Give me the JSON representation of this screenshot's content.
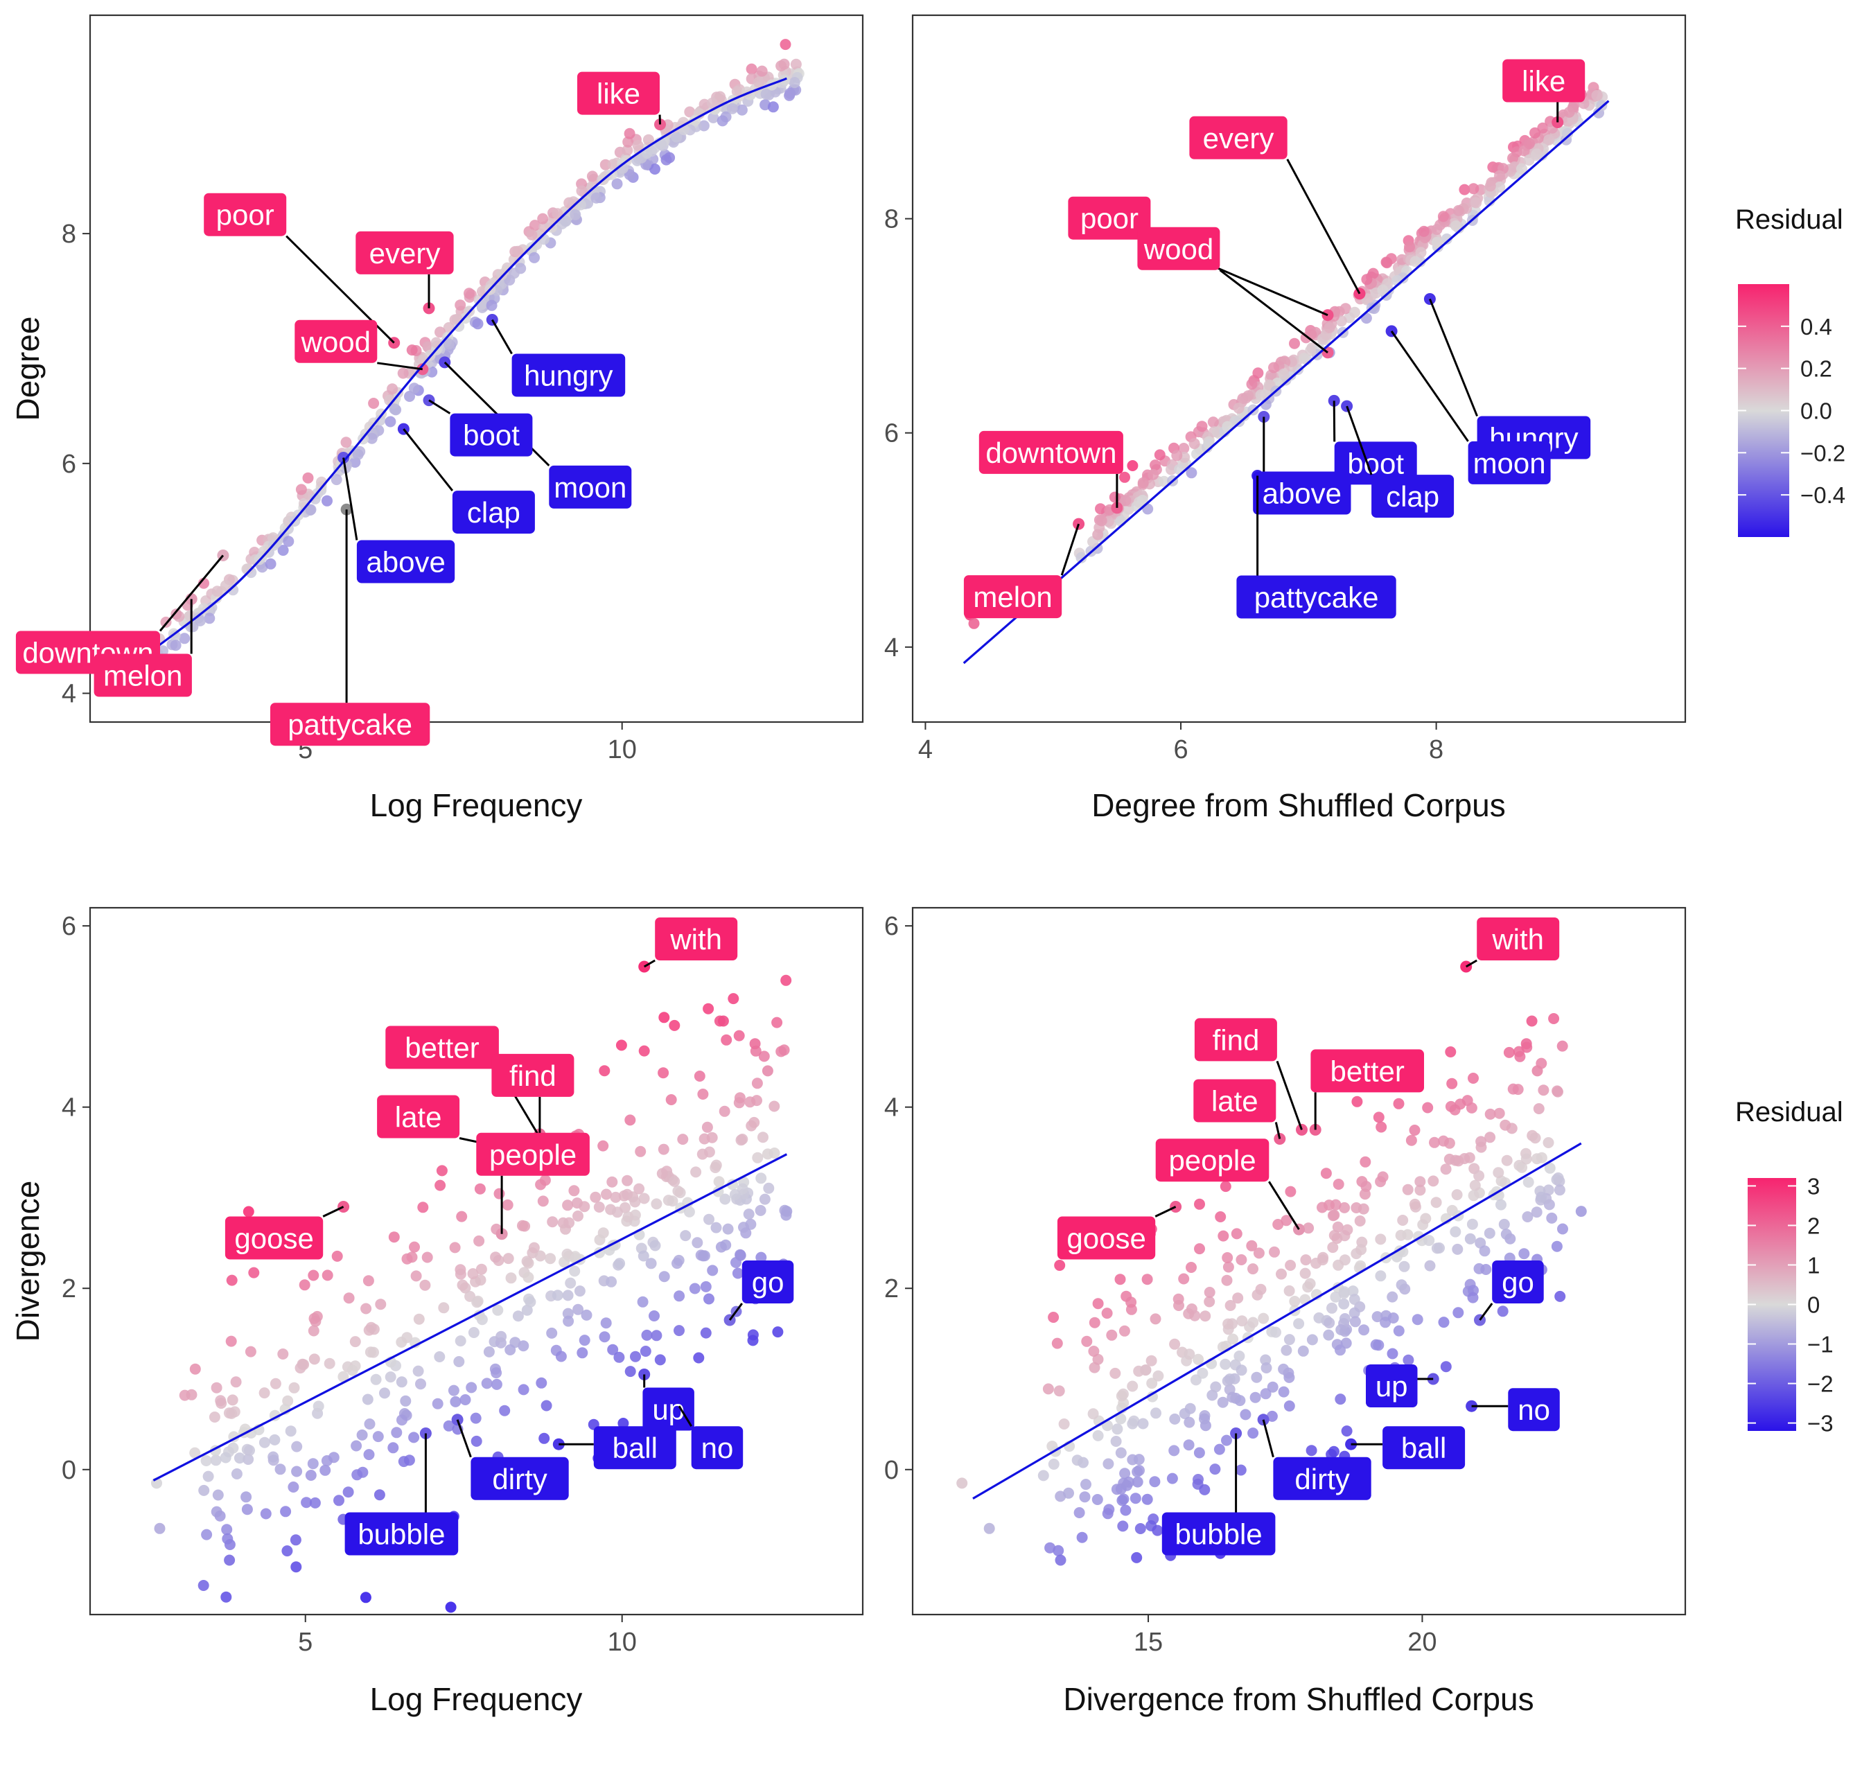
{
  "colors": {
    "fit_line": "#1010e0",
    "high": "#f7236f",
    "mid": "#d9d9d9",
    "low": "#2a12e8",
    "outlier_point": "#8a8a8a"
  },
  "legends": [
    {
      "title": "Residual",
      "ticks": [
        "0.4",
        "0.2",
        "0.0",
        "−0.2",
        "−0.4"
      ],
      "tick_values": [
        0.4,
        0.2,
        0.0,
        -0.2,
        -0.4
      ],
      "range": [
        -0.6,
        0.6
      ]
    },
    {
      "title": "Residual",
      "ticks": [
        "3",
        "2",
        "1",
        "0",
        "−1",
        "−2",
        "−3"
      ],
      "tick_values": [
        3,
        2,
        1,
        0,
        -1,
        -2,
        -3
      ],
      "range": [
        -3.2,
        3.2
      ]
    }
  ],
  "chart_data": [
    {
      "type": "scatter",
      "xlabel": "Log Frequency",
      "ylabel": "Degree",
      "xlim": [
        1.6,
        13.8
      ],
      "ylim": [
        3.75,
        9.9
      ],
      "xticks": [
        5,
        10
      ],
      "yticks": [
        4,
        6,
        8
      ],
      "x_tick_labels": [
        "5",
        "10"
      ],
      "y_tick_labels": [
        "4",
        "6",
        "8"
      ],
      "legend": 0,
      "fit_line": "curve",
      "fit_points": [
        [
          2.6,
          4.38
        ],
        [
          4.0,
          5.0
        ],
        [
          5.5,
          5.95
        ],
        [
          7.0,
          6.95
        ],
        [
          8.5,
          7.85
        ],
        [
          10.0,
          8.6
        ],
        [
          11.5,
          9.1
        ],
        [
          12.6,
          9.35
        ]
      ],
      "cloud": {
        "n": 420,
        "seed": 7,
        "x_range": [
          2.6,
          12.8
        ],
        "noise_sd": 0.08,
        "resid_scale": 0.3
      },
      "labeled_points": [
        {
          "label": "like",
          "x": 10.6,
          "y": 8.95,
          "residual": 0.4
        },
        {
          "label": "poor",
          "x": 6.4,
          "y": 7.05,
          "residual": 0.45
        },
        {
          "label": "every",
          "x": 6.95,
          "y": 7.35,
          "residual": 0.45
        },
        {
          "label": "wood",
          "x": 6.85,
          "y": 6.82,
          "residual": 0.4
        },
        {
          "label": "hungry",
          "x": 7.95,
          "y": 7.25,
          "residual": -0.45
        },
        {
          "label": "moon",
          "x": 7.2,
          "y": 6.88,
          "residual": -0.45
        },
        {
          "label": "boot",
          "x": 6.95,
          "y": 6.55,
          "residual": -0.4
        },
        {
          "label": "clap",
          "x": 6.55,
          "y": 6.3,
          "residual": -0.5
        },
        {
          "label": "above",
          "x": 5.6,
          "y": 6.05,
          "residual": -0.4
        },
        {
          "label": "pattycake",
          "x": 5.65,
          "y": 5.6,
          "residual": 0.0,
          "outlier": true
        },
        {
          "label": "downtown",
          "x": 3.7,
          "y": 5.2,
          "residual": 0.15
        },
        {
          "label": "melon",
          "x": 3.2,
          "y": 4.82,
          "residual": 0.2
        }
      ],
      "extra_points": [
        [
          2.65,
          4.3
        ],
        [
          2.65,
          4.22
        ]
      ]
    },
    {
      "type": "scatter",
      "xlabel": "Degree from Shuffled Corpus",
      "ylabel": "",
      "xlim": [
        3.9,
        9.95
      ],
      "ylim": [
        3.3,
        9.9
      ],
      "xticks": [
        4,
        6,
        8
      ],
      "yticks": [
        4,
        6,
        8
      ],
      "x_tick_labels": [
        "4",
        "6",
        "8"
      ],
      "y_tick_labels": [
        "4",
        "6",
        "8"
      ],
      "legend": 0,
      "fit_line": "line",
      "fit_points": [
        [
          4.3,
          3.85
        ],
        [
          9.35,
          9.1
        ]
      ],
      "cloud": {
        "n": 380,
        "seed": 11,
        "x_range": [
          5.2,
          9.3
        ],
        "noise_sd": 0.09,
        "resid_scale": 0.3,
        "offset": 0.15
      },
      "labeled_points": [
        {
          "label": "like",
          "x": 8.95,
          "y": 8.9,
          "residual": 0.45
        },
        {
          "label": "every",
          "x": 7.4,
          "y": 7.3,
          "residual": 0.5
        },
        {
          "label": "poor",
          "x": 7.15,
          "y": 7.1,
          "residual": 0.45
        },
        {
          "label": "wood",
          "x": 7.15,
          "y": 6.75,
          "residual": 0.4
        },
        {
          "label": "hungry",
          "x": 7.95,
          "y": 7.25,
          "residual": -0.5
        },
        {
          "label": "moon",
          "x": 7.65,
          "y": 6.95,
          "residual": -0.5
        },
        {
          "label": "boot",
          "x": 7.2,
          "y": 6.3,
          "residual": -0.45
        },
        {
          "label": "clap",
          "x": 7.3,
          "y": 6.25,
          "residual": -0.45
        },
        {
          "label": "above",
          "x": 6.65,
          "y": 6.15,
          "residual": -0.4
        },
        {
          "label": "pattycake",
          "x": 6.6,
          "y": 5.6,
          "residual": -0.55
        },
        {
          "label": "downtown",
          "x": 5.5,
          "y": 5.3,
          "residual": 0.4
        },
        {
          "label": "melon",
          "x": 5.2,
          "y": 5.15,
          "residual": 0.45
        }
      ],
      "extra_points": [
        [
          4.35,
          4.3
        ],
        [
          4.38,
          4.22
        ],
        [
          5.35,
          5.05
        ]
      ]
    },
    {
      "type": "scatter",
      "xlabel": "Log Frequency",
      "ylabel": "Divergence",
      "xlim": [
        1.6,
        13.8
      ],
      "ylim": [
        -1.6,
        6.2
      ],
      "xticks": [
        5,
        10
      ],
      "yticks": [
        0,
        2,
        4,
        6
      ],
      "x_tick_labels": [
        "5",
        "10"
      ],
      "y_tick_labels": [
        "0",
        "2",
        "4",
        "6"
      ],
      "legend": 1,
      "fit_line": "line",
      "fit_points": [
        [
          2.6,
          -0.12
        ],
        [
          12.6,
          3.48
        ]
      ],
      "cloud": {
        "n": 430,
        "seed": 23,
        "x_range": [
          3.0,
          12.6
        ],
        "noise_sd": 0.85,
        "resid_scale": 1.6
      },
      "labeled_points": [
        {
          "label": "with",
          "x": 10.35,
          "y": 5.55,
          "residual": 3.0
        },
        {
          "label": "better",
          "x": 8.8,
          "y": 3.55,
          "residual": 1.8
        },
        {
          "label": "find",
          "x": 8.7,
          "y": 3.7,
          "residual": 1.9
        },
        {
          "label": "late",
          "x": 8.15,
          "y": 3.55,
          "residual": 1.8
        },
        {
          "label": "people",
          "x": 8.1,
          "y": 2.6,
          "residual": 1.2
        },
        {
          "label": "goose",
          "x": 5.6,
          "y": 2.9,
          "residual": 2.2
        },
        {
          "label": "go",
          "x": 11.7,
          "y": 1.65,
          "residual": -1.8
        },
        {
          "label": "up",
          "x": 10.35,
          "y": 1.05,
          "residual": -2.2
        },
        {
          "label": "no",
          "x": 10.9,
          "y": 0.7,
          "residual": -2.6
        },
        {
          "label": "ball",
          "x": 9.0,
          "y": 0.28,
          "residual": -2.6
        },
        {
          "label": "dirty",
          "x": 7.4,
          "y": 0.55,
          "residual": -2.0
        },
        {
          "label": "bubble",
          "x": 6.9,
          "y": 0.4,
          "residual": -2.0
        }
      ],
      "extra_points": [
        [
          2.7,
          -0.65
        ],
        [
          3.8,
          -1.0
        ],
        [
          2.65,
          -0.15
        ],
        [
          12.1,
          4.7
        ],
        [
          12.3,
          4.4
        ],
        [
          11.6,
          4.95
        ],
        [
          12.6,
          2.85
        ]
      ]
    },
    {
      "type": "scatter",
      "xlabel": "Divergence from Shuffled Corpus",
      "ylabel": "",
      "xlim": [
        10.7,
        24.8
      ],
      "ylim": [
        -1.6,
        6.2
      ],
      "xticks": [
        15,
        20
      ],
      "yticks": [
        0,
        2,
        4,
        6
      ],
      "x_tick_labels": [
        "15",
        "20"
      ],
      "y_tick_labels": [
        "0",
        "2",
        "4",
        "6"
      ],
      "legend": 1,
      "fit_line": "line",
      "fit_points": [
        [
          11.8,
          -0.32
        ],
        [
          22.9,
          3.6
        ]
      ],
      "cloud": {
        "n": 430,
        "seed": 31,
        "x_range": [
          13.0,
          22.6
        ],
        "noise_sd": 0.85,
        "resid_scale": 1.6
      },
      "labeled_points": [
        {
          "label": "with",
          "x": 20.8,
          "y": 5.55,
          "residual": 3.0
        },
        {
          "label": "find",
          "x": 17.8,
          "y": 3.75,
          "residual": 2.2
        },
        {
          "label": "late",
          "x": 17.4,
          "y": 3.65,
          "residual": 2.1
        },
        {
          "label": "better",
          "x": 18.05,
          "y": 3.75,
          "residual": 2.1
        },
        {
          "label": "people",
          "x": 17.75,
          "y": 2.65,
          "residual": 1.2
        },
        {
          "label": "goose",
          "x": 15.5,
          "y": 2.9,
          "residual": 2.2
        },
        {
          "label": "go",
          "x": 21.05,
          "y": 1.65,
          "residual": -1.8
        },
        {
          "label": "up",
          "x": 20.2,
          "y": 1.0,
          "residual": -2.1
        },
        {
          "label": "no",
          "x": 20.9,
          "y": 0.7,
          "residual": -2.5
        },
        {
          "label": "ball",
          "x": 18.7,
          "y": 0.28,
          "residual": -2.7
        },
        {
          "label": "dirty",
          "x": 17.1,
          "y": 0.55,
          "residual": -2.0
        },
        {
          "label": "bubble",
          "x": 16.6,
          "y": 0.4,
          "residual": -2.0
        }
      ],
      "extra_points": [
        [
          11.6,
          -0.15
        ],
        [
          12.1,
          -0.65
        ],
        [
          13.4,
          -1.0
        ],
        [
          22.9,
          2.85
        ],
        [
          21.9,
          4.7
        ],
        [
          22.0,
          4.95
        ],
        [
          22.1,
          4.4
        ]
      ]
    }
  ]
}
